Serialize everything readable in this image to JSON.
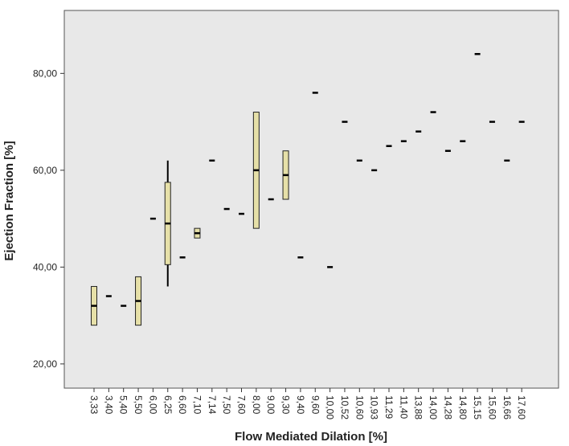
{
  "chart_data": {
    "type": "box",
    "xlabel": "Flow Mediated Dilation [%]",
    "ylabel": "Ejection Fraction [%]",
    "ylim": [
      15,
      93
    ],
    "yticks": [
      "20,00",
      "40,00",
      "60,00",
      "80,00"
    ],
    "ytick_values": [
      20,
      40,
      60,
      80
    ],
    "grid": false,
    "colors": {
      "plot_bg": "#e8e8e8",
      "box_fill": "#e6e0a8",
      "line": "#000000"
    },
    "categories": [
      "3,33",
      "3,40",
      "5,40",
      "5,50",
      "6,00",
      "6,25",
      "6,60",
      "7,10",
      "7,14",
      "7,50",
      "7,60",
      "8,00",
      "9,00",
      "9,30",
      "9,40",
      "9,60",
      "10,00",
      "10,52",
      "10,60",
      "10,93",
      "11,29",
      "11,40",
      "13,88",
      "14,00",
      "14,28",
      "14,80",
      "15,15",
      "15,60",
      "16,66",
      "17,60"
    ],
    "boxes": [
      {
        "x": "3,33",
        "min": 28,
        "q1": 28,
        "median": 32,
        "q3": 36,
        "max": 36
      },
      {
        "x": "3,40",
        "median": 34
      },
      {
        "x": "5,40",
        "median": 32
      },
      {
        "x": "5,50",
        "min": 28,
        "q1": 28,
        "median": 33,
        "q3": 38,
        "max": 38
      },
      {
        "x": "6,00",
        "median": 50
      },
      {
        "x": "6,25",
        "min": 36,
        "q1": 40.5,
        "median": 49,
        "q3": 57.5,
        "max": 62
      },
      {
        "x": "6,60",
        "median": 42
      },
      {
        "x": "7,10",
        "min": 46,
        "q1": 46,
        "median": 47,
        "q3": 48,
        "max": 48
      },
      {
        "x": "7,14",
        "median": 62
      },
      {
        "x": "7,50",
        "median": 52
      },
      {
        "x": "7,60",
        "median": 51
      },
      {
        "x": "8,00",
        "min": 48,
        "q1": 48,
        "median": 60,
        "q3": 72,
        "max": 72
      },
      {
        "x": "9,00",
        "median": 54
      },
      {
        "x": "9,30",
        "min": 54,
        "q1": 54,
        "median": 59,
        "q3": 64,
        "max": 64
      },
      {
        "x": "9,40",
        "median": 42
      },
      {
        "x": "9,60",
        "median": 76
      },
      {
        "x": "10,00",
        "median": 40
      },
      {
        "x": "10,52",
        "median": 70
      },
      {
        "x": "10,60",
        "median": 62
      },
      {
        "x": "10,93",
        "median": 60
      },
      {
        "x": "11,29",
        "median": 65
      },
      {
        "x": "11,40",
        "median": 66
      },
      {
        "x": "13,88",
        "median": 68
      },
      {
        "x": "14,00",
        "median": 72
      },
      {
        "x": "14,28",
        "median": 64
      },
      {
        "x": "14,80",
        "median": 66
      },
      {
        "x": "15,15",
        "median": 84
      },
      {
        "x": "15,60",
        "median": 70
      },
      {
        "x": "16,66",
        "median": 62
      },
      {
        "x": "17,60",
        "median": 70
      }
    ]
  }
}
